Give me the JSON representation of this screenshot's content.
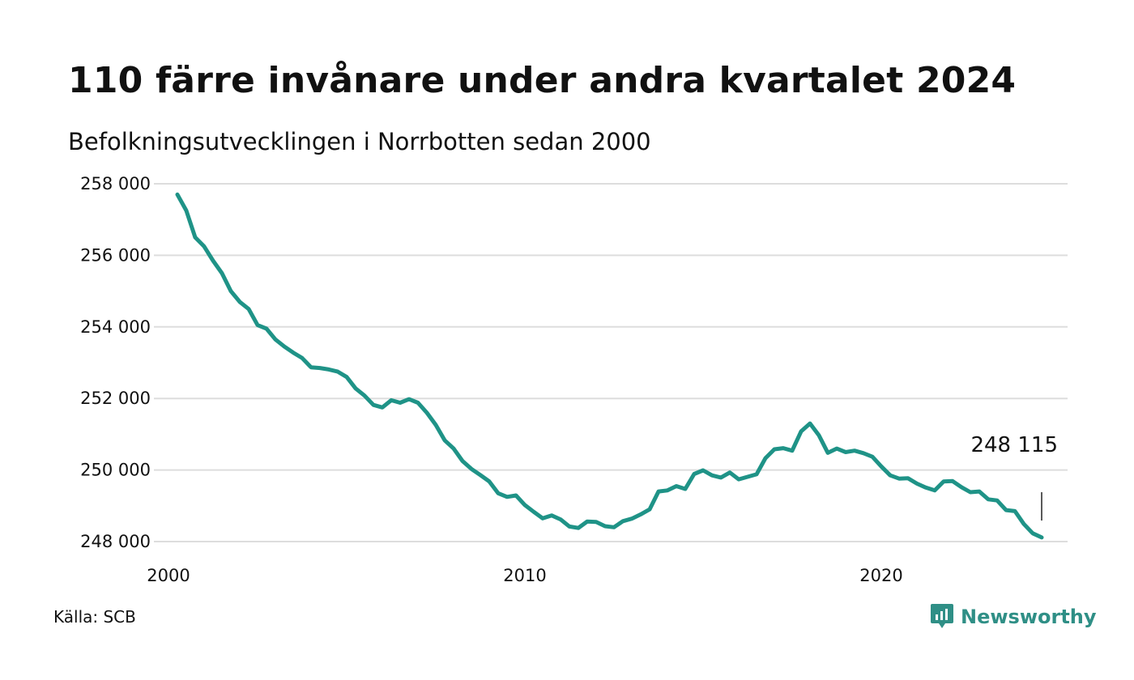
{
  "title": "110 färre invånare under andra kvartalet 2024",
  "subtitle": "Befolkningsutvecklingen i Norrbotten sedan 2000",
  "source": "Källa: SCB",
  "brand": {
    "name": "Newsworthy",
    "icon": "newsworthy-logo-icon",
    "color": "#2f8f86"
  },
  "colors": {
    "line": "#1f9387",
    "grid": "#dddddd",
    "text": "#111111",
    "annotation_tick": "#222222"
  },
  "chart_data": {
    "type": "line",
    "title": "110 färre invånare under andra kvartalet 2024",
    "subtitle": "Befolkningsutvecklingen i Norrbotten sedan 2000",
    "xlabel": "",
    "ylabel": "",
    "xlim": [
      2000,
      2025
    ],
    "ylim": [
      248000,
      258000
    ],
    "x_ticks": [
      2000,
      2010,
      2020
    ],
    "x_tick_labels": [
      "2000",
      "2010",
      "2020"
    ],
    "y_ticks": [
      248000,
      250000,
      252000,
      254000,
      256000,
      258000
    ],
    "y_tick_labels": [
      "248 000",
      "250 000",
      "252 000",
      "254 000",
      "256 000",
      "258 000"
    ],
    "grid": true,
    "legend": "none",
    "annotation": {
      "label": "248 115",
      "x": 2024.5,
      "y": 248115
    },
    "series": [
      {
        "x": [
          2000.25,
          2000.5,
          2000.75,
          2001.0,
          2001.25,
          2001.5,
          2001.75,
          2002.0,
          2002.25,
          2002.5,
          2002.75,
          2003.0,
          2003.25,
          2003.5,
          2003.75,
          2004.0,
          2004.25,
          2004.5,
          2004.75,
          2005.0,
          2005.25,
          2005.5,
          2005.75,
          2006.0,
          2006.25,
          2006.5,
          2006.75,
          2007.0,
          2007.25,
          2007.5,
          2007.75,
          2008.0,
          2008.25,
          2008.5,
          2008.75,
          2009.0,
          2009.25,
          2009.5,
          2009.75,
          2010.0,
          2010.25,
          2010.5,
          2010.75,
          2011.0,
          2011.25,
          2011.5,
          2011.75,
          2012.0,
          2012.25,
          2012.5,
          2012.75,
          2013.0,
          2013.25,
          2013.5,
          2013.75,
          2014.0,
          2014.25,
          2014.5,
          2014.75,
          2015.0,
          2015.25,
          2015.5,
          2015.75,
          2016.0,
          2016.25,
          2016.5,
          2016.75,
          2017.0,
          2017.25,
          2017.5,
          2017.75,
          2018.0,
          2018.25,
          2018.5,
          2018.75,
          2019.0,
          2019.25,
          2019.5,
          2019.75,
          2020.0,
          2020.25,
          2020.5,
          2020.75,
          2021.0,
          2021.25,
          2021.5,
          2021.75,
          2022.0,
          2022.25,
          2022.5,
          2022.75,
          2023.0,
          2023.25,
          2023.5,
          2023.75,
          2024.0,
          2024.25,
          2024.5
        ],
        "values": [
          257700,
          257250,
          256500,
          256250,
          255850,
          255500,
          255000,
          254700,
          254500,
          254050,
          253950,
          253650,
          253450,
          253280,
          253130,
          252870,
          252850,
          252810,
          252750,
          252600,
          252280,
          252080,
          251820,
          251750,
          251950,
          251880,
          251980,
          251880,
          251600,
          251260,
          250830,
          250600,
          250250,
          250030,
          249860,
          249680,
          249350,
          249250,
          249290,
          249020,
          248830,
          248650,
          248730,
          248620,
          248420,
          248380,
          248560,
          248550,
          248430,
          248400,
          248570,
          248640,
          248760,
          248900,
          249400,
          249430,
          249550,
          249470,
          249890,
          249990,
          249850,
          249790,
          249930,
          249740,
          249810,
          249880,
          250330,
          250580,
          250610,
          250540,
          251080,
          251300,
          250970,
          250480,
          250600,
          250500,
          250540,
          250470,
          250370,
          250100,
          249850,
          249760,
          249770,
          249620,
          249510,
          249430,
          249680,
          249690,
          249520,
          249380,
          249400,
          249180,
          249150,
          248880,
          248850,
          248490,
          248230,
          248115
        ]
      }
    ]
  }
}
